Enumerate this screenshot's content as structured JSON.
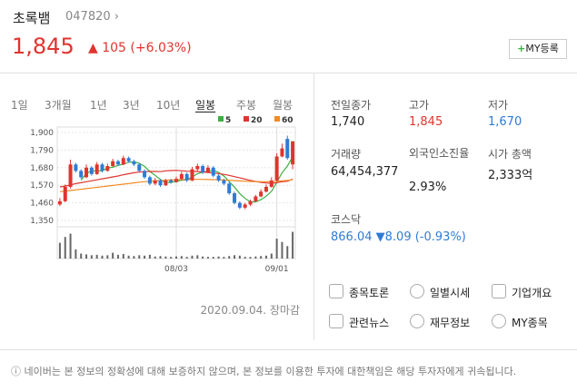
{
  "header": {
    "name": "초록뱀",
    "code": "047820",
    "price": "1,845",
    "change": "105",
    "change_pct": "(+6.03%)",
    "button": "MY등록"
  },
  "tabs": [
    "1일",
    "3개월",
    "1년",
    "3년",
    "10년",
    "일봉",
    "주봉",
    "월봉"
  ],
  "chart_data": {
    "type": "candlestick",
    "up_color": "#e0342e",
    "down_color": "#2f7bd6",
    "categories": [
      null,
      null,
      null,
      null,
      null,
      null,
      null,
      null,
      null,
      null,
      null,
      null,
      null,
      null,
      null,
      null,
      null,
      null,
      null,
      null,
      null,
      null,
      "08/03",
      null,
      null,
      null,
      null,
      null,
      null,
      null,
      null,
      null,
      null,
      null,
      null,
      null,
      null,
      null,
      null,
      null,
      null,
      "09/01",
      null,
      null,
      null
    ],
    "open": [
      1450,
      1470,
      1560,
      1700,
      1660,
      1620,
      1680,
      1640,
      1700,
      1660,
      1690,
      1720,
      1700,
      1740,
      1720,
      1700,
      1660,
      1620,
      1580,
      1600,
      1570,
      1600,
      1590,
      1610,
      1640,
      1600,
      1670,
      1690,
      1650,
      1680,
      1630,
      1600,
      1580,
      1520,
      1460,
      1430,
      1450,
      1470,
      1500,
      1530,
      1560,
      1600,
      1750,
      1860,
      1700
    ],
    "high": [
      1490,
      1575,
      1730,
      1710,
      1670,
      1700,
      1690,
      1715,
      1710,
      1705,
      1735,
      1730,
      1755,
      1750,
      1730,
      1710,
      1670,
      1630,
      1615,
      1610,
      1610,
      1610,
      1625,
      1655,
      1650,
      1685,
      1705,
      1700,
      1695,
      1690,
      1640,
      1610,
      1590,
      1530,
      1470,
      1460,
      1480,
      1510,
      1545,
      1575,
      1620,
      1770,
      1830,
      1880,
      1845
    ],
    "low": [
      1440,
      1465,
      1550,
      1650,
      1610,
      1615,
      1630,
      1635,
      1650,
      1655,
      1685,
      1690,
      1695,
      1710,
      1690,
      1650,
      1610,
      1570,
      1570,
      1560,
      1565,
      1580,
      1585,
      1600,
      1590,
      1595,
      1660,
      1640,
      1645,
      1620,
      1590,
      1570,
      1510,
      1450,
      1420,
      1420,
      1440,
      1465,
      1495,
      1525,
      1555,
      1595,
      1745,
      1730,
      1670
    ],
    "close": [
      1470,
      1560,
      1700,
      1660,
      1620,
      1680,
      1640,
      1700,
      1660,
      1690,
      1720,
      1700,
      1740,
      1720,
      1700,
      1660,
      1620,
      1580,
      1600,
      1570,
      1600,
      1590,
      1610,
      1640,
      1600,
      1670,
      1690,
      1650,
      1680,
      1630,
      1600,
      1580,
      1520,
      1460,
      1430,
      1450,
      1470,
      1500,
      1530,
      1560,
      1600,
      1750,
      1800,
      1740,
      1845
    ],
    "series": [
      {
        "name": "5",
        "color": "#3cb043",
        "values": [
          null,
          null,
          null,
          null,
          1602,
          1644,
          1660,
          1660,
          1660,
          1678,
          1682,
          1694,
          1702,
          1714,
          1716,
          1708,
          1688,
          1656,
          1632,
          1606,
          1586,
          1588,
          1594,
          1602,
          1604,
          1622,
          1642,
          1652,
          1658,
          1664,
          1650,
          1628,
          1594,
          1558,
          1518,
          1488,
          1466,
          1466,
          1480,
          1502,
          1532,
          1588,
          1648,
          1690,
          1748
        ]
      },
      {
        "name": "20",
        "color": "#e0342e",
        "values": [
          1560,
          1565,
          1572,
          1580,
          1586,
          1592,
          1598,
          1604,
          1610,
          1616,
          1622,
          1628,
          1636,
          1642,
          1648,
          1652,
          1655,
          1656,
          1656,
          1655,
          1660,
          1662,
          1663,
          1661,
          1658,
          1657,
          1656,
          1653,
          1650,
          1647,
          1643,
          1638,
          1632,
          1624,
          1616,
          1608,
          1600,
          1594,
          1588,
          1584,
          1582,
          1586,
          1592,
          1595,
          1608
        ]
      },
      {
        "name": "60",
        "color": "#f08a24",
        "values": [
          1530,
          1533,
          1537,
          1541,
          1545,
          1549,
          1553,
          1557,
          1561,
          1565,
          1569,
          1573,
          1577,
          1581,
          1585,
          1589,
          1592,
          1595,
          1597,
          1599,
          1601,
          1603,
          1604,
          1605,
          1606,
          1607,
          1607,
          1607,
          1606,
          1605,
          1604,
          1603,
          1601,
          1599,
          1597,
          1595,
          1594,
          1593,
          1592,
          1592,
          1593,
          1595,
          1598,
          1600,
          1604
        ]
      }
    ],
    "volume": [
      38000000,
      52000000,
      60000000,
      22000000,
      12000000,
      10000000,
      8000000,
      9000000,
      7000000,
      8000000,
      14000000,
      9000000,
      11000000,
      7000000,
      6000000,
      8000000,
      7000000,
      9000000,
      5000000,
      6000000,
      5000000,
      4000000,
      5000000,
      6000000,
      4000000,
      7000000,
      8000000,
      5000000,
      4000000,
      4000000,
      5000000,
      4000000,
      6000000,
      8000000,
      7000000,
      4000000,
      4000000,
      5000000,
      6000000,
      7000000,
      12000000,
      48000000,
      40000000,
      30000000,
      64454377
    ],
    "volume_lim": [
      0,
      70000000
    ],
    "ylim": [
      1350,
      1900
    ],
    "yticks": [
      {
        "value": 1900,
        "label": "1,900"
      },
      {
        "value": 1790,
        "label": "1,790"
      },
      {
        "value": 1680,
        "label": "1,680"
      },
      {
        "value": 1570,
        "label": "1,570"
      },
      {
        "value": 1460,
        "label": "1,460"
      },
      {
        "value": 1350,
        "label": "1,350"
      }
    ]
  },
  "date": "2020.09.04. 장마감",
  "stats": [
    {
      "label": "전일종가",
      "value": "1,740"
    },
    {
      "label": "고가",
      "value": "1,845"
    },
    {
      "label": "저가",
      "value": "1,670"
    },
    {
      "label": "거래량",
      "value": "64,454,377"
    },
    {
      "label": "외국인소진율",
      "value": "2.93%"
    },
    {
      "label": "시가 총액",
      "value": "2,333억"
    }
  ],
  "index": {
    "name": "코스닥",
    "value": "866.04",
    "change": "8.09",
    "pct": "(-0.93%)"
  },
  "links": [
    "종목토론",
    "일별시세",
    "기업개요",
    "관련뉴스",
    "재무정보",
    "MY종목"
  ],
  "footer": "네이버는 본 정보의 정확성에 대해 보증하지 않으며, 본 정보를 이용한 투자에 대한책임은 해당 투자자에게 귀속됩니다."
}
